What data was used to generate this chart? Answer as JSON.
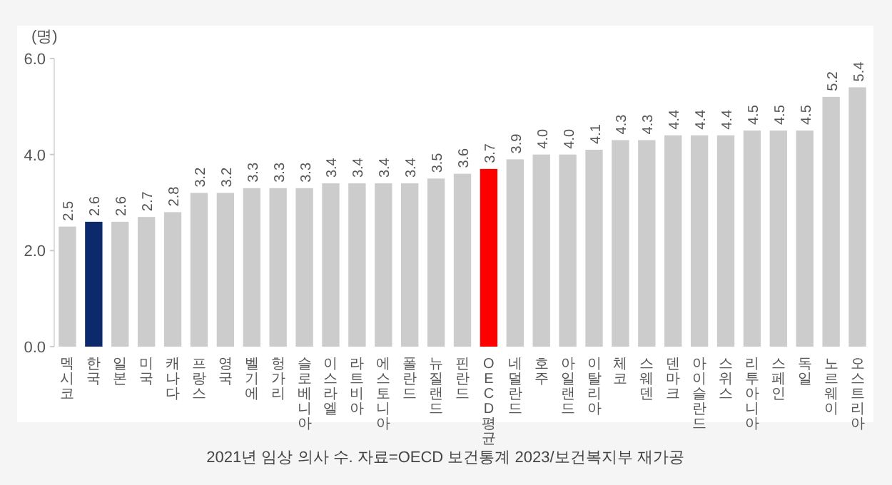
{
  "chart_data": {
    "type": "bar",
    "ylabel": "(명)",
    "annotations": [
      "2021년 임상 의사 수. 자료=OECD 보건통계 2023/보건복지부 재가공"
    ],
    "categories": [
      "멕시코",
      "한국",
      "일본",
      "미국",
      "캐나다",
      "프랑스",
      "영국",
      "벨기에",
      "헝가리",
      "슬로베니아",
      "이스라엘",
      "라트비아",
      "에스토니아",
      "폴란드",
      "뉴질랜드",
      "핀란드",
      "OECD평균",
      "네덜란드",
      "호주",
      "아일랜드",
      "이탈리아",
      "체코",
      "스웨덴",
      "덴마크",
      "아이슬란드",
      "스위스",
      "리투아니아",
      "스페인",
      "독일",
      "노르웨이",
      "오스트리아"
    ],
    "values": [
      2.5,
      2.6,
      2.6,
      2.7,
      2.8,
      3.2,
      3.2,
      3.3,
      3.3,
      3.3,
      3.4,
      3.4,
      3.4,
      3.4,
      3.5,
      3.6,
      3.7,
      3.9,
      4.0,
      4.0,
      4.1,
      4.3,
      4.3,
      4.4,
      4.4,
      4.4,
      4.5,
      4.5,
      4.5,
      5.2,
      5.4
    ],
    "value_labels": [
      "2.5",
      "2.6",
      "2.6",
      "2.7",
      "2.8",
      "3.2",
      "3.2",
      "3.3",
      "3.3",
      "3.3",
      "3.4",
      "3.4",
      "3.4",
      "3.4",
      "3.5",
      "3.6",
      "3.7",
      "3.9",
      "4.0",
      "4.0",
      "4.1",
      "4.3",
      "4.3",
      "4.4",
      "4.4",
      "4.4",
      "4.5",
      "4.5",
      "4.5",
      "5.2",
      "5.4"
    ],
    "colors": [
      "#cccccc",
      "#0c2a6b",
      "#cccccc",
      "#cccccc",
      "#cccccc",
      "#cccccc",
      "#cccccc",
      "#cccccc",
      "#cccccc",
      "#cccccc",
      "#cccccc",
      "#cccccc",
      "#cccccc",
      "#cccccc",
      "#cccccc",
      "#cccccc",
      "#ff0000",
      "#cccccc",
      "#cccccc",
      "#cccccc",
      "#cccccc",
      "#cccccc",
      "#cccccc",
      "#cccccc",
      "#cccccc",
      "#cccccc",
      "#cccccc",
      "#cccccc",
      "#cccccc",
      "#cccccc",
      "#cccccc"
    ],
    "ylim": [
      0,
      6
    ],
    "yticks": [
      {
        "value": 0,
        "label": "0.0"
      },
      {
        "value": 2,
        "label": "2.0"
      },
      {
        "value": 4,
        "label": "4.0"
      },
      {
        "value": 6,
        "label": "6.0"
      }
    ],
    "grid": false
  }
}
